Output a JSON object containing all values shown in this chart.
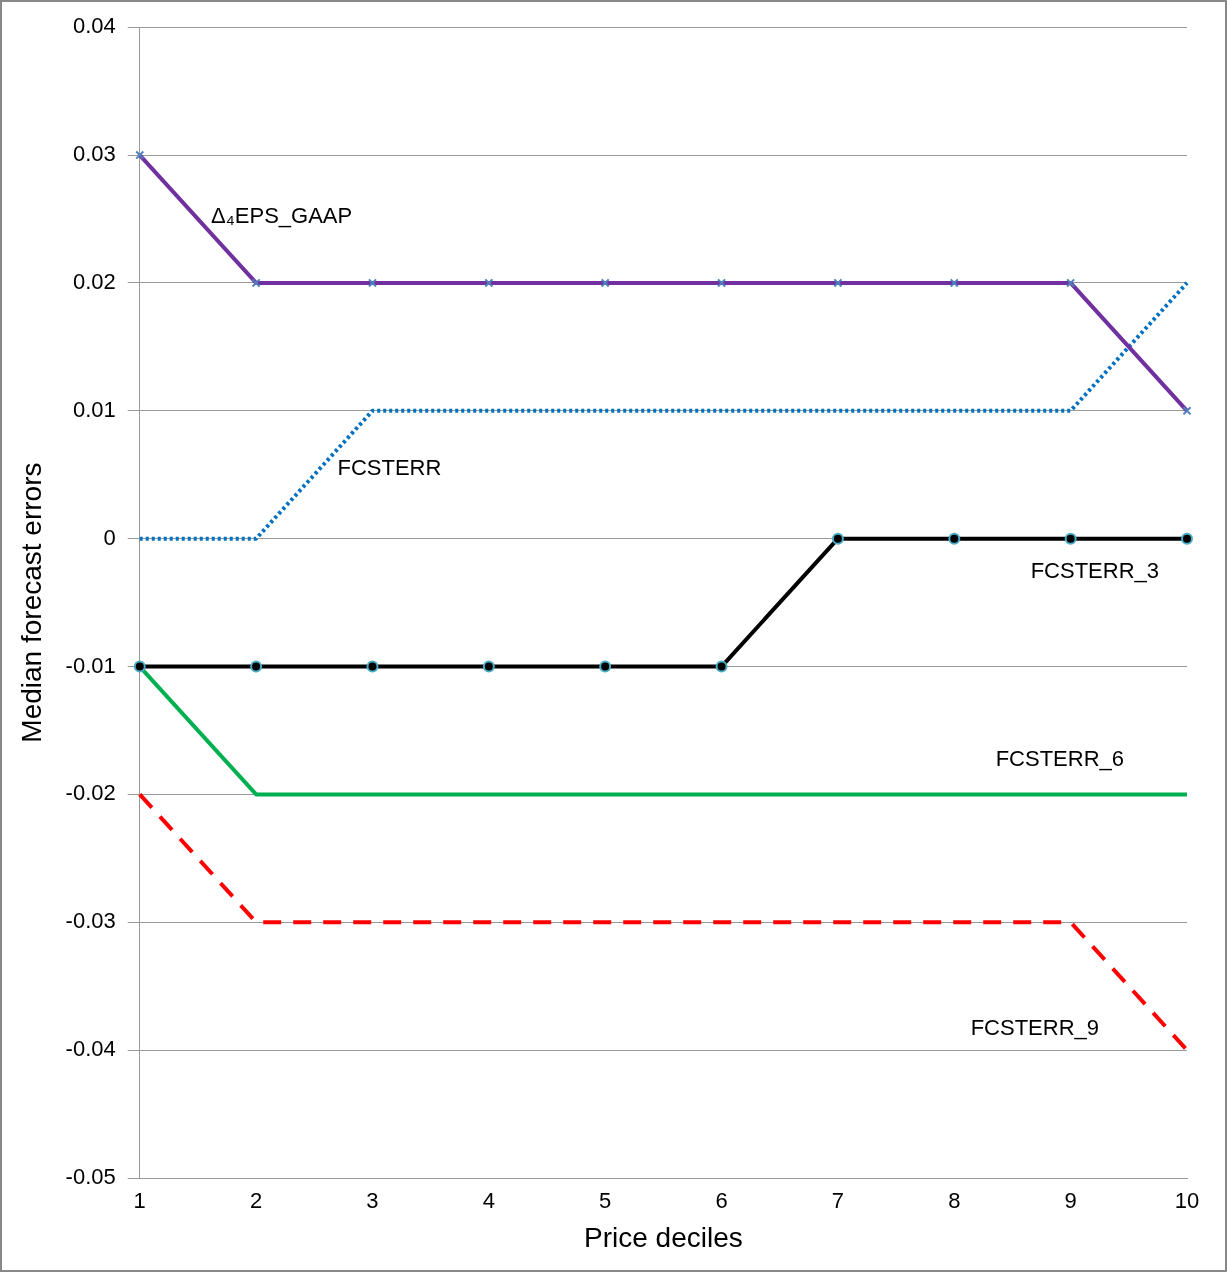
{
  "chart_data": {
    "type": "line",
    "xlabel": "Price deciles",
    "ylabel": "Median forecast errors",
    "categories": [
      "1",
      "2",
      "3",
      "4",
      "5",
      "6",
      "7",
      "8",
      "9",
      "10"
    ],
    "ylim": [
      -0.05,
      0.04
    ],
    "yticks": [
      -0.05,
      -0.04,
      -0.03,
      -0.02,
      -0.01,
      0,
      0.01,
      0.02,
      0.03,
      0.04
    ],
    "grid": "y",
    "legend": false,
    "series": [
      {
        "name": "Δ₄EPS_GAAP",
        "color": "#7030a0",
        "marker": "cross",
        "line_style": "solid",
        "values": [
          0.03,
          0.02,
          0.02,
          0.02,
          0.02,
          0.02,
          0.02,
          0.02,
          0.02,
          0.01
        ]
      },
      {
        "name": "FCSTERR",
        "color": "#0070c0",
        "marker": "none",
        "line_style": "dotted",
        "values": [
          0,
          0,
          0.01,
          0.01,
          0.01,
          0.01,
          0.01,
          0.01,
          0.01,
          0.02
        ]
      },
      {
        "name": "FCSTERR_3",
        "color": "#000000",
        "marker": "circle",
        "line_style": "solid",
        "values": [
          -0.01,
          -0.01,
          -0.01,
          -0.01,
          -0.01,
          -0.01,
          0,
          0,
          0,
          0
        ]
      },
      {
        "name": "FCSTERR_6",
        "color": "#00b050",
        "marker": "none",
        "line_style": "solid",
        "values": [
          -0.01,
          -0.02,
          -0.02,
          -0.02,
          -0.02,
          -0.02,
          -0.02,
          -0.02,
          -0.02,
          -0.02
        ]
      },
      {
        "name": "FCSTERR_9",
        "color": "#ff0000",
        "marker": "none",
        "line_style": "dashed",
        "values": [
          -0.02,
          -0.03,
          -0.03,
          -0.03,
          -0.03,
          -0.03,
          -0.03,
          -0.03,
          -0.03,
          -0.04
        ]
      }
    ]
  }
}
